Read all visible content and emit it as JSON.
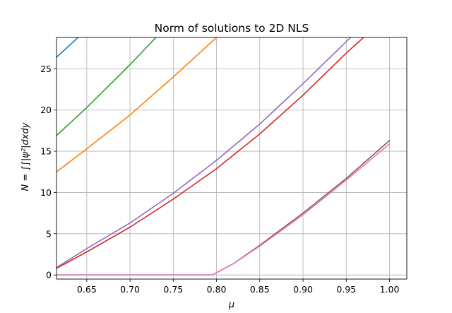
{
  "chart_data": {
    "type": "line",
    "title": "Norm of solutions to 2D NLS",
    "xlabel": "μ",
    "ylabel": "N = ∫∫|ψ²|dxdy",
    "xlim": [
      0.615,
      1.02
    ],
    "ylim": [
      -0.5,
      28.8
    ],
    "xticks": [
      "0.65",
      "0.70",
      "0.75",
      "0.80",
      "0.85",
      "0.90",
      "0.95",
      "1.00"
    ],
    "yticks": [
      "0",
      "5",
      "10",
      "15",
      "20",
      "25"
    ],
    "grid": true,
    "series": [
      {
        "color": "#1f77b4",
        "x": [
          0.615,
          0.64
        ],
        "y": [
          26.4,
          28.8
        ]
      },
      {
        "color": "#ff7f0e",
        "x": [
          0.615,
          0.65,
          0.7,
          0.75,
          0.8
        ],
        "y": [
          12.5,
          15.3,
          19.4,
          24.0,
          28.8
        ]
      },
      {
        "color": "#2ca02c",
        "x": [
          0.615,
          0.65,
          0.7,
          0.73
        ],
        "y": [
          16.9,
          20.3,
          25.5,
          28.8
        ]
      },
      {
        "color": "#d62728",
        "x": [
          0.615,
          0.65,
          0.7,
          0.75,
          0.8,
          0.85,
          0.9,
          0.95,
          0.97
        ],
        "y": [
          0.8,
          2.8,
          5.8,
          9.2,
          12.9,
          17.1,
          21.8,
          26.9,
          28.8
        ]
      },
      {
        "color": "#9467bd",
        "x": [
          0.615,
          0.65,
          0.7,
          0.75,
          0.8,
          0.85,
          0.9,
          0.955
        ],
        "y": [
          0.9,
          3.2,
          6.3,
          9.9,
          13.9,
          18.3,
          23.2,
          28.8
        ]
      },
      {
        "color": "#8c564b",
        "x": [
          0.615,
          0.795,
          0.82,
          0.85,
          0.9,
          0.95,
          1.0
        ],
        "y": [
          0.0,
          0.0,
          1.4,
          3.6,
          7.5,
          11.7,
          16.3
        ]
      },
      {
        "color": "#e377c2",
        "x": [
          0.615,
          0.795,
          0.82,
          0.85,
          0.9,
          0.95,
          1.0
        ],
        "y": [
          0.0,
          0.0,
          1.4,
          3.5,
          7.3,
          11.5,
          15.9
        ]
      }
    ]
  }
}
